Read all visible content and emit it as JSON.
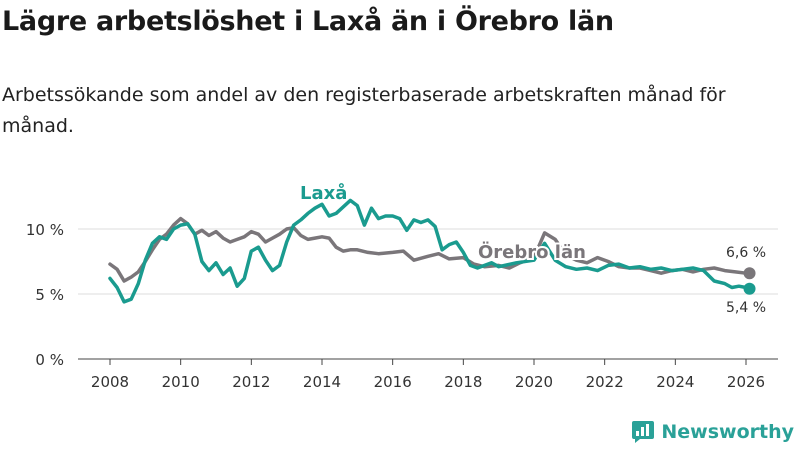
{
  "title": "Lägre arbetslöshet i Laxå än i Örebro län",
  "subtitle": "Arbetssökande som andel av den registerbaserade arbetskraften månad för månad.",
  "brand": "Newsworthy",
  "colors": {
    "laxa": "#1a9b8f",
    "orebro": "#7a767a",
    "grid": "#dcdcdc",
    "axis": "#444444",
    "brand": "#2aa198"
  },
  "chart_data": {
    "type": "line",
    "xlim": [
      2008,
      2026.3
    ],
    "ylim": [
      0,
      10
    ],
    "x_ticks": [
      2008,
      2010,
      2012,
      2014,
      2016,
      2018,
      2020,
      2022,
      2024,
      2026
    ],
    "x_tick_labels": [
      "2008",
      "2010",
      "2012",
      "2014",
      "2016",
      "2018",
      "2020",
      "2022",
      "2024",
      "2026"
    ],
    "y_ticks": [
      0,
      5,
      10
    ],
    "y_tick_labels": [
      "0 %",
      "5 %",
      "10 %"
    ],
    "series": [
      {
        "name": "Laxå",
        "label": "Laxå",
        "key": "laxa",
        "end_label": "5,4 %",
        "x": [
          2008.0,
          2008.2,
          2008.4,
          2008.6,
          2008.8,
          2009.0,
          2009.2,
          2009.4,
          2009.6,
          2009.8,
          2010.0,
          2010.2,
          2010.4,
          2010.6,
          2010.8,
          2011.0,
          2011.2,
          2011.4,
          2011.6,
          2011.8,
          2012.0,
          2012.2,
          2012.4,
          2012.6,
          2012.8,
          2013.0,
          2013.2,
          2013.4,
          2013.6,
          2013.8,
          2014.0,
          2014.2,
          2014.4,
          2014.6,
          2014.8,
          2015.0,
          2015.2,
          2015.4,
          2015.6,
          2015.8,
          2016.0,
          2016.2,
          2016.4,
          2016.6,
          2016.8,
          2017.0,
          2017.2,
          2017.4,
          2017.6,
          2017.8,
          2018.0,
          2018.2,
          2018.4,
          2018.6,
          2018.8,
          2019.0,
          2019.5,
          2020.0,
          2020.3,
          2020.6,
          2020.9,
          2021.2,
          2021.5,
          2021.8,
          2022.1,
          2022.4,
          2022.7,
          2023.0,
          2023.3,
          2023.6,
          2023.9,
          2024.2,
          2024.5,
          2024.8,
          2025.1,
          2025.4,
          2025.6,
          2025.8,
          2026.0,
          2026.1
        ],
        "y": [
          6.2,
          5.5,
          4.4,
          4.6,
          5.8,
          7.6,
          8.9,
          9.4,
          9.2,
          10.0,
          10.3,
          10.4,
          9.6,
          7.5,
          6.8,
          7.4,
          6.5,
          7.0,
          5.6,
          6.2,
          8.3,
          8.6,
          7.6,
          6.8,
          7.2,
          9.0,
          10.3,
          10.7,
          11.2,
          11.6,
          11.9,
          11.0,
          11.2,
          11.7,
          12.2,
          11.8,
          10.3,
          11.6,
          10.8,
          11.0,
          11.0,
          10.8,
          9.9,
          10.7,
          10.5,
          10.7,
          10.2,
          8.4,
          8.8,
          9.0,
          8.2,
          7.2,
          7.0,
          7.2,
          7.4,
          7.1,
          7.4,
          7.6,
          8.9,
          7.6,
          7.1,
          6.9,
          7.0,
          6.8,
          7.2,
          7.3,
          7.0,
          7.1,
          6.9,
          7.0,
          6.8,
          6.9,
          7.0,
          6.8,
          6.0,
          5.8,
          5.5,
          5.6,
          5.5,
          5.4
        ]
      },
      {
        "name": "Örebro län",
        "label": "Örebro län",
        "key": "orebro",
        "end_label": "6,6 %",
        "x": [
          2008.0,
          2008.2,
          2008.4,
          2008.6,
          2008.8,
          2009.0,
          2009.2,
          2009.4,
          2009.6,
          2009.8,
          2010.0,
          2010.2,
          2010.4,
          2010.6,
          2010.8,
          2011.0,
          2011.2,
          2011.4,
          2011.6,
          2011.8,
          2012.0,
          2012.2,
          2012.4,
          2012.6,
          2012.8,
          2013.0,
          2013.2,
          2013.4,
          2013.6,
          2013.8,
          2014.0,
          2014.2,
          2014.4,
          2014.6,
          2014.8,
          2015.0,
          2015.3,
          2015.6,
          2016.0,
          2016.3,
          2016.6,
          2017.0,
          2017.3,
          2017.6,
          2018.0,
          2018.3,
          2018.6,
          2019.0,
          2019.3,
          2019.6,
          2020.0,
          2020.3,
          2020.6,
          2020.9,
          2021.2,
          2021.5,
          2021.8,
          2022.1,
          2022.4,
          2022.7,
          2023.0,
          2023.3,
          2023.6,
          2023.9,
          2024.2,
          2024.5,
          2024.8,
          2025.1,
          2025.4,
          2025.7,
          2026.0,
          2026.1
        ],
        "y": [
          7.3,
          6.9,
          6.0,
          6.3,
          6.7,
          7.5,
          8.4,
          9.2,
          9.6,
          10.3,
          10.8,
          10.4,
          9.6,
          9.9,
          9.5,
          9.8,
          9.3,
          9.0,
          9.2,
          9.4,
          9.8,
          9.6,
          9.0,
          9.3,
          9.6,
          10.0,
          10.1,
          9.5,
          9.2,
          9.3,
          9.4,
          9.3,
          8.6,
          8.3,
          8.4,
          8.4,
          8.2,
          8.1,
          8.2,
          8.3,
          7.6,
          7.9,
          8.1,
          7.7,
          7.8,
          7.3,
          7.1,
          7.2,
          7.0,
          7.4,
          7.8,
          9.7,
          9.2,
          8.0,
          7.6,
          7.4,
          7.8,
          7.5,
          7.1,
          7.0,
          7.0,
          6.8,
          6.6,
          6.8,
          6.9,
          6.7,
          6.9,
          7.0,
          6.8,
          6.7,
          6.6,
          6.6
        ]
      }
    ]
  }
}
